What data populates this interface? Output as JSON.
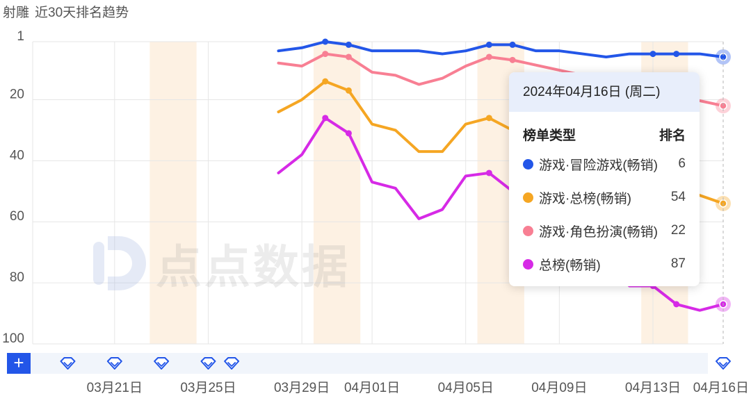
{
  "title": {
    "app": "射雕",
    "subtitle": "近30天排名趋势"
  },
  "watermark": {
    "text": "点点数据"
  },
  "colors": {
    "adventure": "#2356e8",
    "overall_game": "#f5a623",
    "rpg": "#f87f93",
    "overall": "#d62ae6",
    "weekend_band": "#fdf1e3",
    "grid": "#e6e6e6",
    "axis_text": "#555555",
    "add_button": "#2356e8"
  },
  "chart_data": {
    "type": "line",
    "title": "近30天排名趋势",
    "y_axis": {
      "reversed": true,
      "min": 1,
      "max": 100,
      "ticks": [
        1,
        20,
        40,
        60,
        80,
        100
      ]
    },
    "x_axis": {
      "start": "2024-03-18",
      "end": "2024-04-16",
      "tick_labels": [
        {
          "date": "2024-03-21",
          "label": "03月21日"
        },
        {
          "date": "2024-03-25",
          "label": "03月25日"
        },
        {
          "date": "2024-03-29",
          "label": "03月29日"
        },
        {
          "date": "2024-04-01",
          "label": "04月01日"
        },
        {
          "date": "2024-04-05",
          "label": "04月05日"
        },
        {
          "date": "2024-04-09",
          "label": "04月09日"
        },
        {
          "date": "2024-04-13",
          "label": "04月13日"
        },
        {
          "date": "2024-04-16",
          "label": "04月16日"
        }
      ]
    },
    "weekend_bands": [
      [
        "2024-03-23",
        "2024-03-24"
      ],
      [
        "2024-03-30",
        "2024-03-31"
      ],
      [
        "2024-04-06",
        "2024-04-07"
      ],
      [
        "2024-04-13",
        "2024-04-14"
      ]
    ],
    "grid": true,
    "series": [
      {
        "name": "游戏·冒险游戏(畅销)",
        "color_key": "adventure",
        "x": [
          "2024-03-28",
          "2024-03-29",
          "2024-03-30",
          "2024-03-31",
          "2024-04-01",
          "2024-04-02",
          "2024-04-03",
          "2024-04-04",
          "2024-04-05",
          "2024-04-06",
          "2024-04-07",
          "2024-04-08",
          "2024-04-09",
          "2024-04-10",
          "2024-04-11",
          "2024-04-12",
          "2024-04-13",
          "2024-04-14",
          "2024-04-15",
          "2024-04-16"
        ],
        "y": [
          4,
          3,
          1,
          2,
          4,
          4,
          4,
          5,
          4,
          2,
          2,
          4,
          4,
          5,
          6,
          5,
          5,
          5,
          5,
          6
        ],
        "markers": [
          "2024-03-30",
          "2024-03-31",
          "2024-04-06",
          "2024-04-07",
          "2024-04-13",
          "2024-04-14"
        ]
      },
      {
        "name": "游戏·总榜(畅销)",
        "color_key": "overall_game",
        "x": [
          "2024-03-28",
          "2024-03-29",
          "2024-03-30",
          "2024-03-31",
          "2024-04-01",
          "2024-04-02",
          "2024-04-03",
          "2024-04-04",
          "2024-04-05",
          "2024-04-06",
          "2024-04-07",
          "2024-04-16"
        ],
        "y": [
          24,
          20,
          14,
          17,
          28,
          30,
          37,
          37,
          28,
          26,
          30,
          54
        ],
        "markers": [
          "2024-03-30",
          "2024-03-31",
          "2024-04-06",
          "2024-04-07"
        ]
      },
      {
        "name": "游戏·角色扮演(畅销)",
        "color_key": "rpg",
        "x": [
          "2024-03-28",
          "2024-03-29",
          "2024-03-30",
          "2024-03-31",
          "2024-04-01",
          "2024-04-02",
          "2024-04-03",
          "2024-04-04",
          "2024-04-05",
          "2024-04-06",
          "2024-04-07",
          "2024-04-16"
        ],
        "y": [
          8,
          9,
          5,
          6,
          11,
          12,
          15,
          13,
          9,
          6,
          7,
          22
        ],
        "markers": [
          "2024-03-30",
          "2024-03-31",
          "2024-04-06",
          "2024-04-07"
        ]
      },
      {
        "name": "总榜(畅销)",
        "color_key": "overall",
        "x": [
          "2024-03-28",
          "2024-03-29",
          "2024-03-30",
          "2024-03-31",
          "2024-04-01",
          "2024-04-02",
          "2024-04-03",
          "2024-04-04",
          "2024-04-05",
          "2024-04-06",
          "2024-04-07",
          "2024-04-12",
          "2024-04-13",
          "2024-04-14",
          "2024-04-15",
          "2024-04-16"
        ],
        "y": [
          44,
          38,
          26,
          31,
          47,
          49,
          59,
          56,
          45,
          44,
          50,
          81,
          81,
          87,
          89,
          87
        ],
        "markers": [
          "2024-03-30",
          "2024-03-31",
          "2024-04-06",
          "2024-04-07",
          "2024-04-13",
          "2024-04-14"
        ]
      }
    ],
    "hover": {
      "date": "2024-04-16"
    }
  },
  "tooltip": {
    "date_label": "2024年04月16日 (周二)",
    "col_type": "榜单类型",
    "col_rank": "排名",
    "rows": [
      {
        "name": "游戏·冒险游戏(畅销)",
        "rank": "6",
        "color_key": "adventure"
      },
      {
        "name": "游戏·总榜(畅销)",
        "rank": "54",
        "color_key": "overall_game"
      },
      {
        "name": "游戏·角色扮演(畅销)",
        "rank": "22",
        "color_key": "rpg"
      },
      {
        "name": "总榜(畅销)",
        "rank": "87",
        "color_key": "overall"
      }
    ]
  },
  "timeline": {
    "add_button_label": "+",
    "event_markers": [
      "2024-03-19",
      "2024-03-21",
      "2024-03-23",
      "2024-03-25",
      "2024-03-26",
      "2024-04-16"
    ]
  }
}
